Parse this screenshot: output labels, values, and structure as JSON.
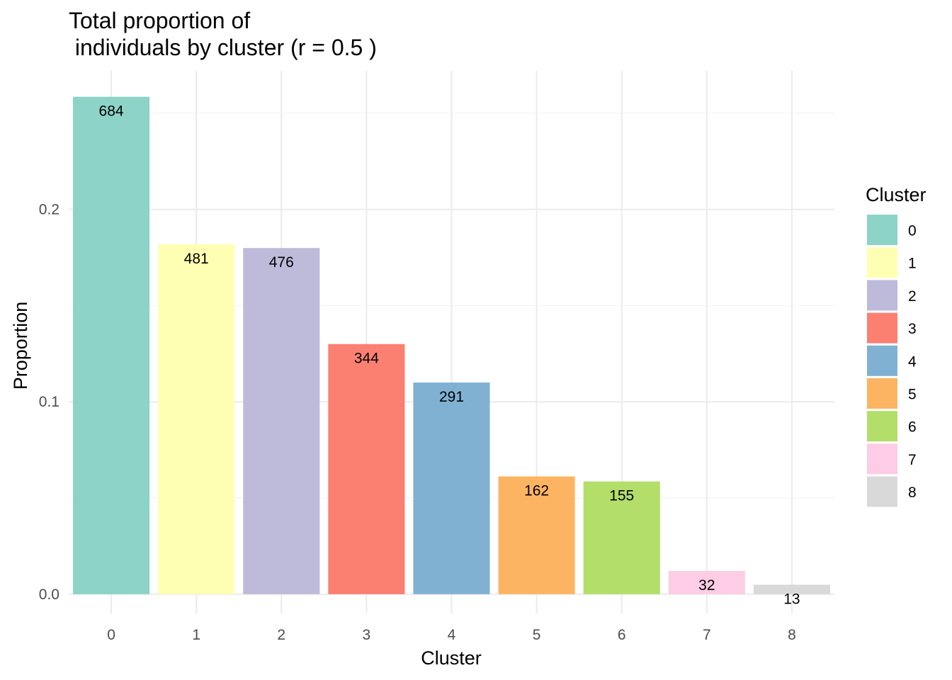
{
  "chart_data": {
    "type": "bar",
    "title_line1": "Total proportion of",
    "title_line2": " individuals by cluster (r = 0.5 )",
    "xlabel": "Cluster",
    "ylabel": "Proportion",
    "categories": [
      "0",
      "1",
      "2",
      "3",
      "4",
      "5",
      "6",
      "7",
      "8"
    ],
    "counts": [
      684,
      481,
      476,
      344,
      291,
      162,
      155,
      32,
      13
    ],
    "values": [
      0.2585,
      0.1818,
      0.1799,
      0.13,
      0.11,
      0.0612,
      0.0586,
      0.0121,
      0.0049
    ],
    "colors": [
      "#8dd3c7",
      "#ffffb3",
      "#bebada",
      "#fb8072",
      "#80b1d3",
      "#fdb462",
      "#b3de69",
      "#fccde5",
      "#d9d9d9"
    ],
    "ylim": [
      -0.01,
      0.272
    ],
    "yticks": [
      0.0,
      0.1,
      0.2
    ],
    "ytick_labels": [
      "0.0",
      "0.1",
      "0.2"
    ],
    "grid": true,
    "legend": {
      "title": "Cluster",
      "position": "right",
      "labels": [
        "0",
        "1",
        "2",
        "3",
        "4",
        "5",
        "6",
        "7",
        "8"
      ]
    }
  }
}
